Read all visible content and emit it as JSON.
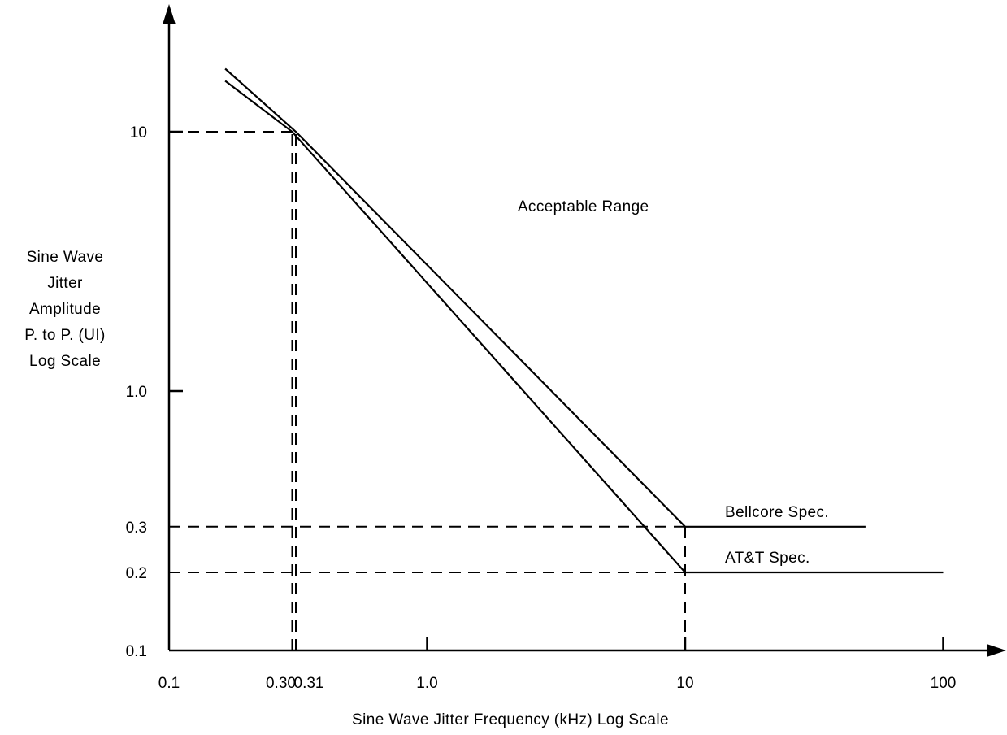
{
  "chart_data": {
    "type": "line",
    "xscale": "log",
    "yscale": "log",
    "xlim": [
      0.1,
      100
    ],
    "ylim": [
      0.1,
      10
    ],
    "xlabel": "Sine Wave Jitter Frequency (kHz) Log Scale",
    "ylabel_lines": [
      "Sine Wave",
      "Jitter",
      "Amplitude",
      "P. to P. (UI)",
      "Log Scale"
    ],
    "x_ticks": [
      {
        "value": 0.1,
        "label": "0.1"
      },
      {
        "value": 0.3,
        "label": "0.30"
      },
      {
        "value": 0.31,
        "label": "0.31"
      },
      {
        "value": 1.0,
        "label": "1.0"
      },
      {
        "value": 10,
        "label": "10"
      },
      {
        "value": 100,
        "label": "100"
      }
    ],
    "y_ticks": [
      {
        "value": 0.1,
        "label": "0.1"
      },
      {
        "value": 0.2,
        "label": "0.2"
      },
      {
        "value": 0.3,
        "label": "0.3"
      },
      {
        "value": 1.0,
        "label": "1.0"
      },
      {
        "value": 10,
        "label": "10"
      }
    ],
    "series": [
      {
        "name": "Bellcore Spec.",
        "x": [
          0.165,
          0.31,
          10,
          50
        ],
        "y": [
          17.5,
          10,
          0.3,
          0.3
        ]
      },
      {
        "name": "AT&T Spec.",
        "x": [
          0.165,
          0.3,
          10,
          100
        ],
        "y": [
          15.7,
          10,
          0.2,
          0.2
        ]
      }
    ],
    "reference_lines": [
      {
        "axis": "y",
        "value": 10,
        "x_to": 0.31
      },
      {
        "axis": "y",
        "value": 0.3,
        "x_to": 10
      },
      {
        "axis": "y",
        "value": 0.2,
        "x_to": 10
      },
      {
        "axis": "x",
        "value": 0.3,
        "y_to": 10
      },
      {
        "axis": "x",
        "value": 0.31,
        "y_to": 10
      },
      {
        "axis": "x",
        "value": 10,
        "y_to": 0.3
      }
    ],
    "annotations": [
      {
        "text": "Acceptable Range",
        "x": 2.5,
        "y": 5.0
      }
    ]
  }
}
